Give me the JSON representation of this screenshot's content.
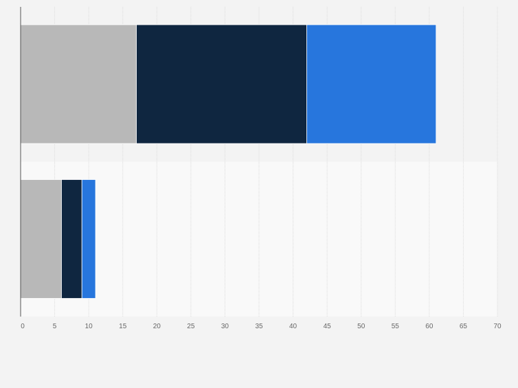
{
  "chart_data": {
    "type": "bar",
    "orientation": "horizontal",
    "stacked": true,
    "title": "",
    "xlabel": "",
    "ylabel": "",
    "categories": [
      "",
      ""
    ],
    "series": [
      {
        "values": [
          17,
          6
        ],
        "color": "#b8b8b8"
      },
      {
        "values": [
          25,
          3
        ],
        "color": "#0f2640"
      },
      {
        "values": [
          19,
          2
        ],
        "color": "#2776dd"
      }
    ],
    "xlim": [
      0,
      70
    ],
    "xticks": [
      0,
      5,
      10,
      15,
      20,
      25,
      30,
      35,
      40,
      45,
      50,
      55,
      60,
      65,
      70
    ],
    "grid": true,
    "legend": "none"
  },
  "colors": {
    "page_background": "#f3f3f3",
    "band_alternate": "#f9f9f9",
    "gridline": "#dcdcdc",
    "axis": "#555555",
    "tick_label": "#666666"
  }
}
